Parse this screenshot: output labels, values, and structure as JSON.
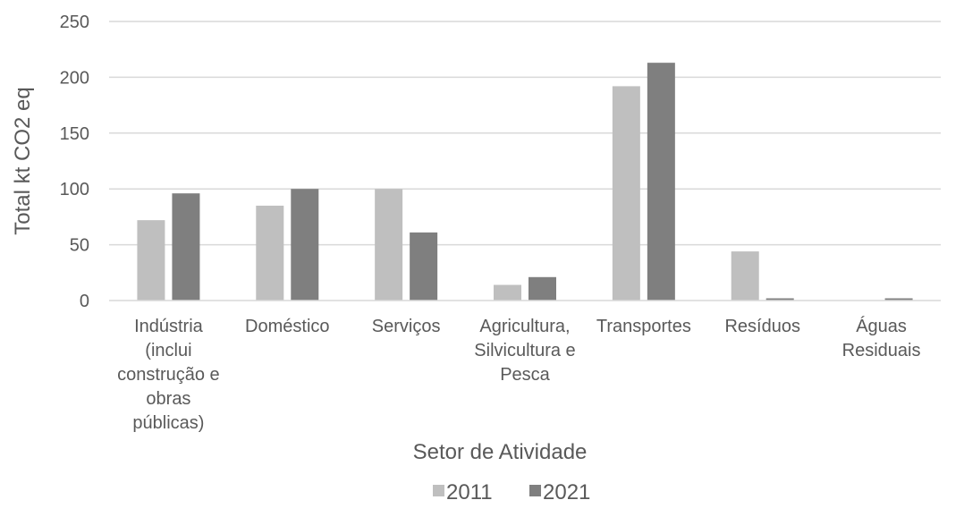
{
  "chart_data": {
    "type": "bar",
    "title": "",
    "xlabel": "Setor de Atividade",
    "ylabel": "Total kt CO2 eq",
    "ylim": [
      0,
      250
    ],
    "yticks": [
      "0",
      "50",
      "100",
      "150",
      "200",
      "250"
    ],
    "grid": true,
    "legend_position": "bottom",
    "categories": [
      "Indústria (inclui construção e obras públicas)",
      "Doméstico",
      "Serviços",
      "Agricultura, Silvicultura e Pesca",
      "Transportes",
      "Resíduos",
      "Águas Residuais"
    ],
    "category_lines": [
      [
        "Indústria",
        "(inclui",
        "construção e",
        "obras",
        "públicas)"
      ],
      [
        "Doméstico"
      ],
      [
        "Serviços"
      ],
      [
        "Agricultura,",
        "Silvicultura e",
        "Pesca"
      ],
      [
        "Transportes"
      ],
      [
        "Resíduos"
      ],
      [
        "Águas",
        "Residuais"
      ]
    ],
    "series": [
      {
        "name": "2011",
        "color": "#bfbfbf",
        "values": [
          72,
          85,
          100,
          14,
          192,
          44,
          0
        ]
      },
      {
        "name": "2021",
        "color": "#7f7f7f",
        "values": [
          96,
          100,
          61,
          21,
          213,
          2,
          2
        ]
      }
    ]
  }
}
